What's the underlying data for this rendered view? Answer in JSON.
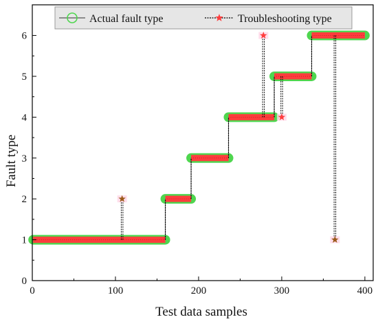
{
  "chart_data": {
    "type": "line",
    "title": "",
    "xlabel": "Test data samples",
    "ylabel": "Fault type",
    "xlim": [
      0,
      410
    ],
    "ylim": [
      0,
      6.75
    ],
    "x_ticks": [
      0,
      100,
      200,
      300,
      400
    ],
    "y_ticks": [
      0,
      1,
      2,
      3,
      4,
      5,
      6
    ],
    "grid": false,
    "legend_position": "top",
    "colors": {
      "actual_marker": "#4fd64f",
      "actual_line": "#555555",
      "trouble_marker": "#ff3d3d",
      "trouble_line": "#000000",
      "outlier_star": "#9b5a1a",
      "outlier_halo": "#ffd6e6"
    },
    "series": [
      {
        "name": "Actual fault type",
        "marker": "circle",
        "segments": [
          {
            "x_start": 1,
            "x_end": 160,
            "value": 1
          },
          {
            "x_start": 160,
            "x_end": 191,
            "value": 2
          },
          {
            "x_start": 191,
            "x_end": 236,
            "value": 3
          },
          {
            "x_start": 236,
            "x_end": 291,
            "value": 4
          },
          {
            "x_start": 291,
            "x_end": 336,
            "value": 5
          },
          {
            "x_start": 336,
            "x_end": 400,
            "value": 6
          }
        ]
      },
      {
        "name": "Troubleshooting type",
        "marker": "star",
        "segments": [
          {
            "x_start": 1,
            "x_end": 160,
            "value": 1
          },
          {
            "x_start": 160,
            "x_end": 191,
            "value": 2
          },
          {
            "x_start": 191,
            "x_end": 236,
            "value": 3
          },
          {
            "x_start": 236,
            "x_end": 291,
            "value": 4
          },
          {
            "x_start": 291,
            "x_end": 336,
            "value": 5
          },
          {
            "x_start": 336,
            "x_end": 400,
            "value": 6
          }
        ],
        "outliers": [
          {
            "x": 108,
            "actual": 1,
            "predicted": 2
          },
          {
            "x": 278,
            "actual": 4,
            "predicted": 6
          },
          {
            "x": 300,
            "actual": 5,
            "predicted": 4
          },
          {
            "x": 364,
            "actual": 6,
            "predicted": 1
          }
        ]
      }
    ]
  }
}
